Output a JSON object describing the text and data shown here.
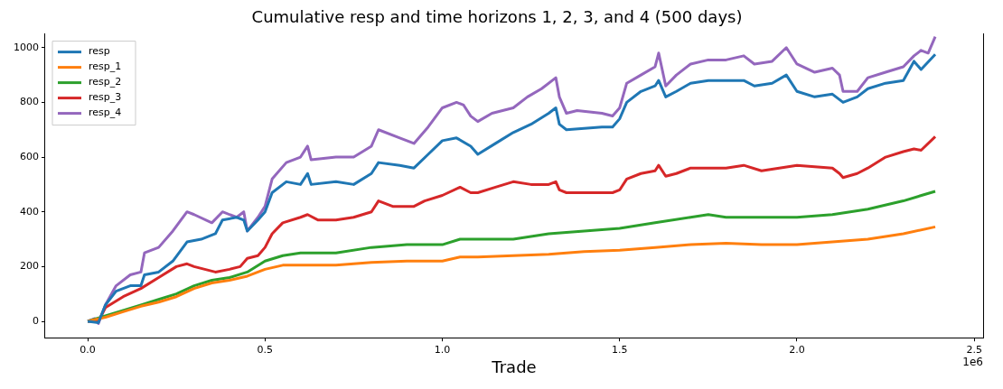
{
  "chart_data": {
    "type": "line",
    "title": "Cumulative resp and time horizons 1, 2, 3, and 4 (500 days)",
    "xlabel": "Trade",
    "annotations": [
      "1e6"
    ],
    "xlim": [
      -0.12,
      2.525
    ],
    "xticks": [
      {
        "value": 0,
        "label": "0.0"
      },
      0.5,
      {
        "value": 1,
        "label": "1.0"
      },
      1.5,
      {
        "value": 2,
        "label": "2.0"
      },
      2.5
    ],
    "ylim": [
      -60,
      1050
    ],
    "yticks": [
      0,
      200,
      400,
      600,
      800,
      1000
    ],
    "grid": false,
    "legend": "top left",
    "marker": "none",
    "line_style": "solid",
    "series": [
      {
        "name": "resp",
        "color": "#1f77b4",
        "x": [
          0,
          0.03,
          0.05,
          0.08,
          0.12,
          0.15,
          0.16,
          0.2,
          0.24,
          0.28,
          0.32,
          0.36,
          0.38,
          0.42,
          0.44,
          0.45,
          0.48,
          0.5,
          0.52,
          0.56,
          0.6,
          0.62,
          0.63,
          0.7,
          0.75,
          0.8,
          0.82,
          0.88,
          0.92,
          0.96,
          1.0,
          1.04,
          1.08,
          1.1,
          1.15,
          1.2,
          1.25,
          1.3,
          1.32,
          1.33,
          1.35,
          1.45,
          1.48,
          1.5,
          1.52,
          1.56,
          1.6,
          1.61,
          1.63,
          1.66,
          1.7,
          1.75,
          1.8,
          1.85,
          1.88,
          1.93,
          1.97,
          2.0,
          2.05,
          2.1,
          2.12,
          2.13,
          2.17,
          2.2,
          2.25,
          2.3,
          2.33,
          2.35,
          2.39
        ],
        "values": [
          0,
          -5,
          60,
          110,
          130,
          130,
          170,
          180,
          220,
          290,
          300,
          320,
          370,
          380,
          370,
          330,
          370,
          400,
          470,
          510,
          500,
          540,
          500,
          510,
          500,
          540,
          580,
          570,
          560,
          610,
          660,
          670,
          640,
          610,
          650,
          690,
          720,
          760,
          780,
          720,
          700,
          710,
          710,
          740,
          800,
          840,
          860,
          880,
          820,
          840,
          870,
          880,
          880,
          880,
          860,
          870,
          900,
          840,
          820,
          830,
          810,
          800,
          820,
          850,
          870,
          880,
          950,
          920,
          975
        ]
      },
      {
        "name": "resp_1",
        "color": "#ff7f0e",
        "x": [
          0,
          0.05,
          0.1,
          0.15,
          0.2,
          0.25,
          0.3,
          0.35,
          0.4,
          0.45,
          0.5,
          0.55,
          0.6,
          0.7,
          0.8,
          0.9,
          1.0,
          1.05,
          1.1,
          1.2,
          1.3,
          1.4,
          1.5,
          1.6,
          1.7,
          1.8,
          1.9,
          2.0,
          2.1,
          2.2,
          2.3,
          2.39
        ],
        "values": [
          0,
          15,
          35,
          55,
          70,
          90,
          120,
          140,
          150,
          165,
          190,
          205,
          205,
          205,
          215,
          220,
          220,
          235,
          235,
          240,
          245,
          255,
          260,
          270,
          280,
          285,
          280,
          280,
          290,
          300,
          320,
          345
        ]
      },
      {
        "name": "resp_2",
        "color": "#2ca02c",
        "x": [
          0,
          0.05,
          0.1,
          0.15,
          0.2,
          0.25,
          0.3,
          0.35,
          0.4,
          0.45,
          0.5,
          0.55,
          0.6,
          0.7,
          0.8,
          0.9,
          1.0,
          1.05,
          1.1,
          1.2,
          1.3,
          1.4,
          1.5,
          1.6,
          1.7,
          1.75,
          1.8,
          1.9,
          2.0,
          2.1,
          2.2,
          2.3,
          2.39
        ],
        "values": [
          0,
          20,
          40,
          60,
          80,
          100,
          130,
          150,
          160,
          180,
          220,
          240,
          250,
          250,
          270,
          280,
          280,
          300,
          300,
          300,
          320,
          330,
          340,
          360,
          380,
          390,
          380,
          380,
          380,
          390,
          410,
          440,
          475
        ]
      },
      {
        "name": "resp_3",
        "color": "#d62728",
        "x": [
          0,
          0.03,
          0.05,
          0.1,
          0.15,
          0.2,
          0.25,
          0.28,
          0.3,
          0.33,
          0.36,
          0.4,
          0.43,
          0.45,
          0.48,
          0.5,
          0.52,
          0.55,
          0.6,
          0.62,
          0.65,
          0.7,
          0.75,
          0.8,
          0.82,
          0.86,
          0.92,
          0.95,
          1.0,
          1.05,
          1.08,
          1.1,
          1.15,
          1.2,
          1.25,
          1.3,
          1.32,
          1.33,
          1.35,
          1.45,
          1.48,
          1.5,
          1.52,
          1.56,
          1.6,
          1.61,
          1.63,
          1.66,
          1.7,
          1.8,
          1.85,
          1.9,
          1.95,
          2.0,
          2.1,
          2.12,
          2.13,
          2.17,
          2.2,
          2.25,
          2.3,
          2.33,
          2.35,
          2.39
        ],
        "values": [
          0,
          0,
          50,
          90,
          120,
          160,
          200,
          210,
          200,
          190,
          180,
          190,
          200,
          230,
          240,
          270,
          320,
          360,
          380,
          390,
          370,
          370,
          380,
          400,
          440,
          420,
          420,
          440,
          460,
          490,
          470,
          470,
          490,
          510,
          500,
          500,
          510,
          480,
          470,
          470,
          470,
          480,
          520,
          540,
          550,
          570,
          530,
          540,
          560,
          560,
          570,
          550,
          560,
          570,
          560,
          540,
          525,
          540,
          560,
          600,
          620,
          630,
          625,
          675
        ]
      },
      {
        "name": "resp_4",
        "color": "#9467bd",
        "x": [
          0,
          0.02,
          0.03,
          0.05,
          0.08,
          0.12,
          0.15,
          0.16,
          0.2,
          0.24,
          0.28,
          0.3,
          0.35,
          0.38,
          0.42,
          0.44,
          0.45,
          0.48,
          0.5,
          0.52,
          0.56,
          0.6,
          0.62,
          0.63,
          0.7,
          0.75,
          0.8,
          0.82,
          0.88,
          0.92,
          0.96,
          1.0,
          1.04,
          1.06,
          1.08,
          1.1,
          1.14,
          1.2,
          1.24,
          1.28,
          1.32,
          1.33,
          1.35,
          1.38,
          1.45,
          1.48,
          1.5,
          1.52,
          1.56,
          1.6,
          1.61,
          1.63,
          1.66,
          1.7,
          1.75,
          1.8,
          1.85,
          1.88,
          1.93,
          1.97,
          2.0,
          2.05,
          2.1,
          2.12,
          2.13,
          2.17,
          2.2,
          2.25,
          2.3,
          2.33,
          2.35,
          2.37,
          2.39
        ],
        "values": [
          0,
          10,
          -8,
          60,
          130,
          170,
          180,
          250,
          270,
          330,
          400,
          390,
          360,
          400,
          380,
          400,
          330,
          380,
          420,
          520,
          580,
          600,
          640,
          590,
          600,
          600,
          640,
          700,
          670,
          650,
          710,
          780,
          800,
          790,
          750,
          730,
          760,
          780,
          820,
          850,
          890,
          820,
          760,
          770,
          760,
          750,
          780,
          870,
          900,
          930,
          980,
          860,
          900,
          940,
          955,
          955,
          970,
          940,
          950,
          1000,
          940,
          910,
          925,
          900,
          840,
          840,
          890,
          910,
          930,
          970,
          990,
          980,
          1040
        ]
      }
    ]
  }
}
